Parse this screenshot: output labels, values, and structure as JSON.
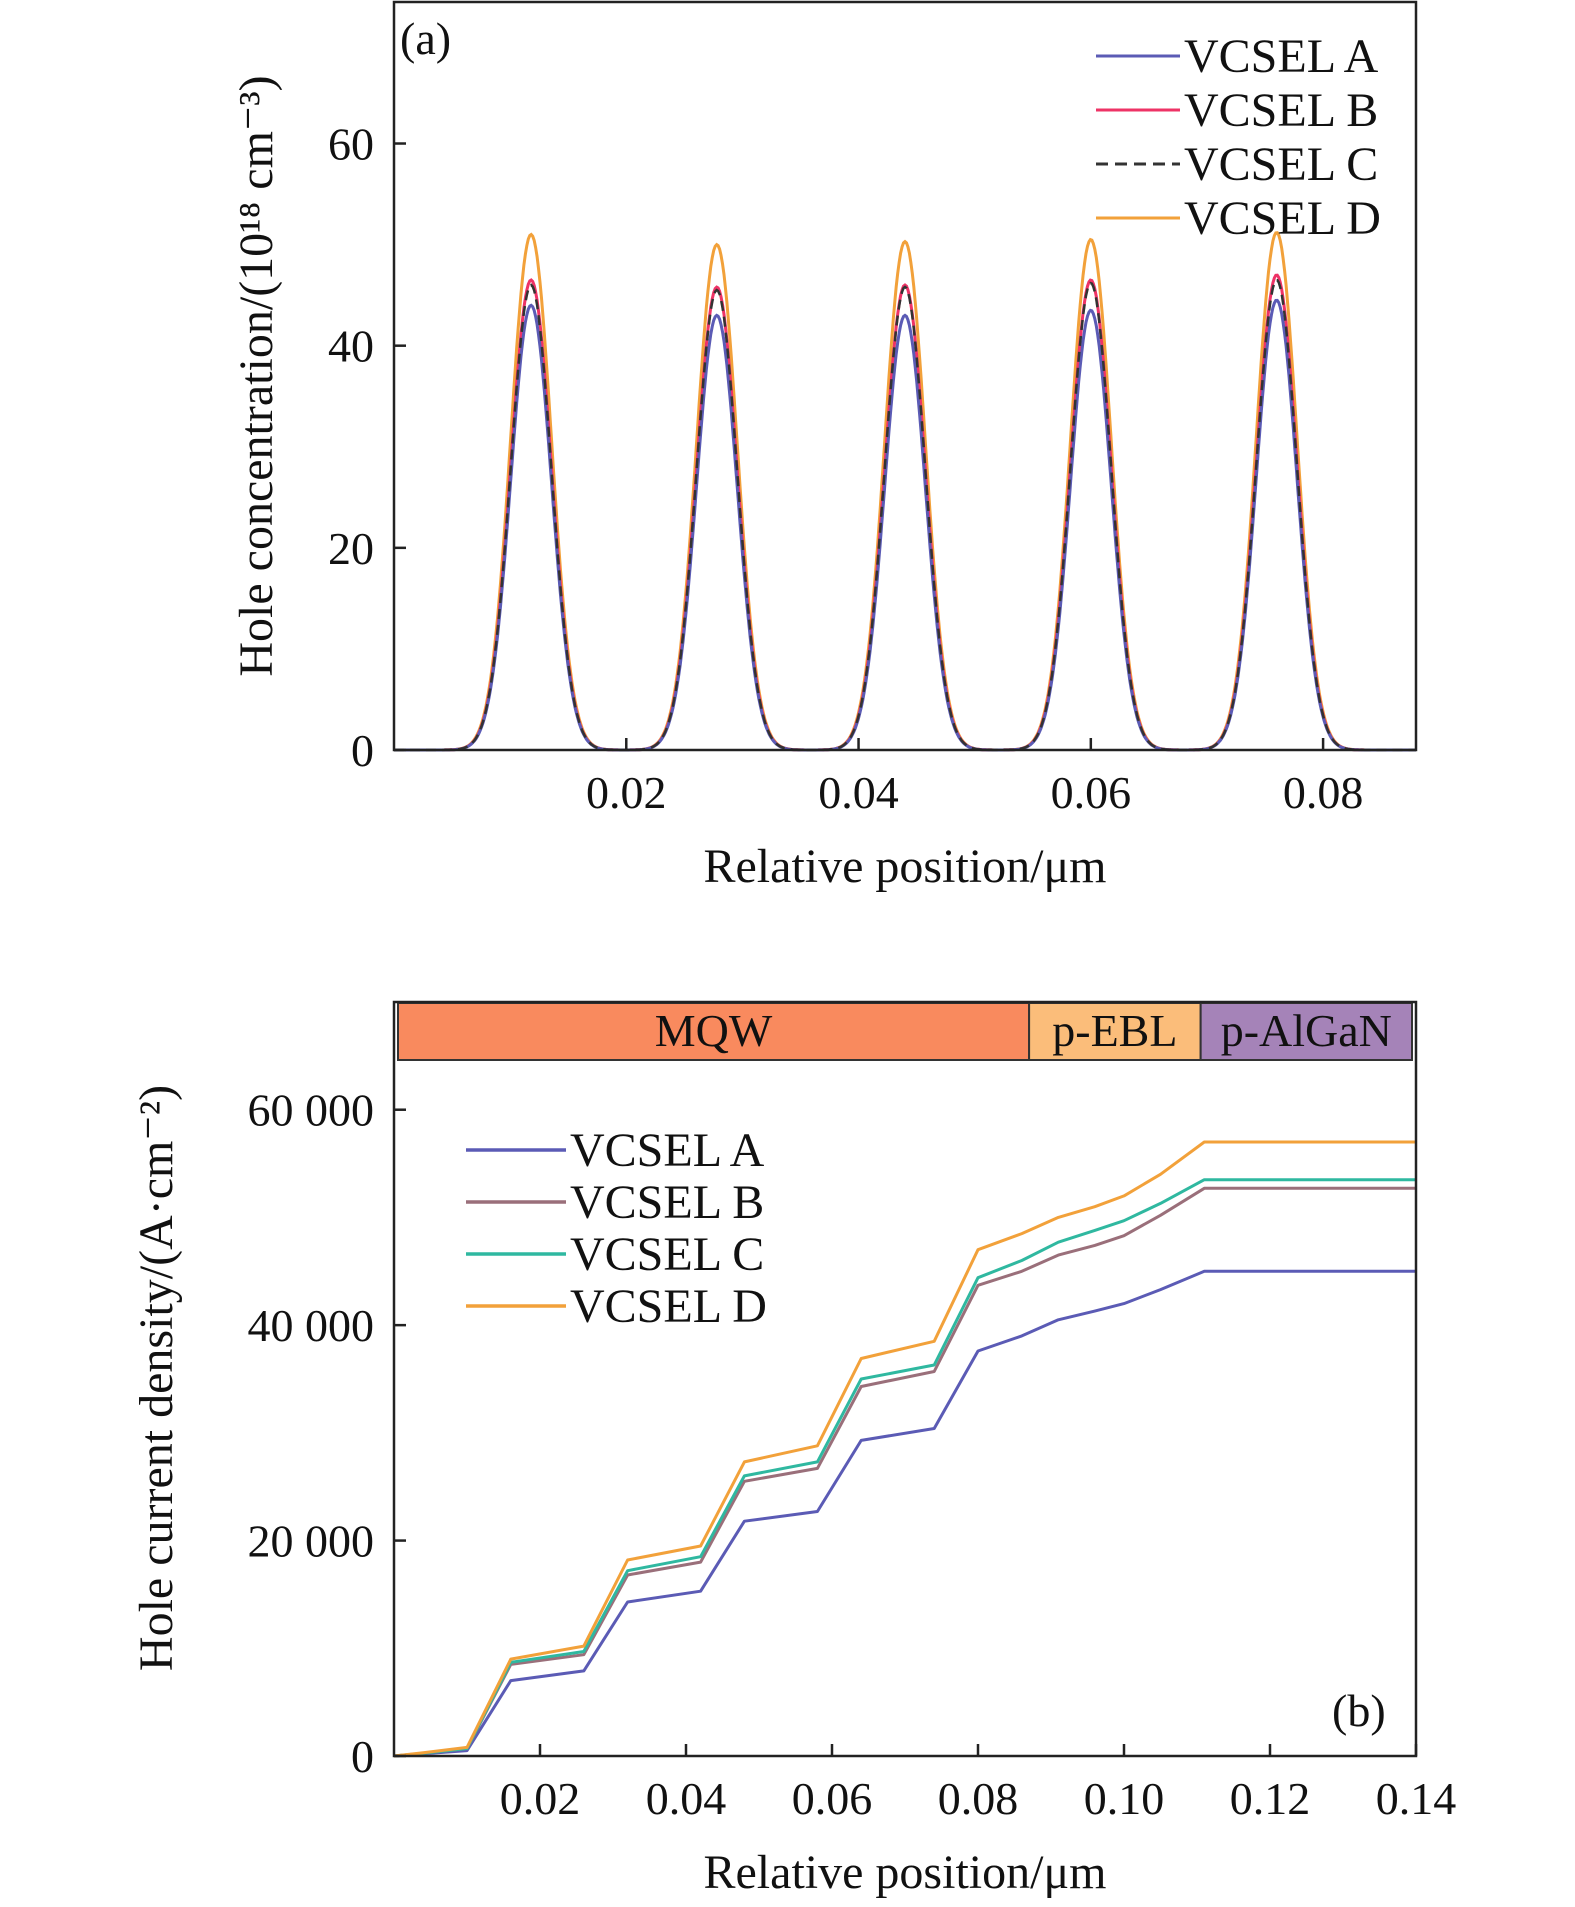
{
  "chart_data": [
    {
      "type": "line",
      "panel_label": "(a)",
      "xlabel": "Relative position/μm",
      "ylabel": "Hole concentration/(10¹⁸ cm⁻³)",
      "xlim": [
        0.0,
        0.088
      ],
      "ylim": [
        0,
        74
      ],
      "x_ticks": [
        0.02,
        0.04,
        0.06,
        0.08
      ],
      "x_tick_labels": [
        "0.02",
        "0.04",
        "0.06",
        "0.08"
      ],
      "y_ticks": [
        0,
        20,
        40,
        60
      ],
      "y_tick_labels": [
        "0",
        "20",
        "40",
        "60"
      ],
      "grid": false,
      "legend_position": "top-right",
      "peak_centers": [
        0.0118,
        0.0278,
        0.044,
        0.06,
        0.076
      ],
      "peak_sigma": 0.00175,
      "series": [
        {
          "name": "VCSEL A",
          "color": "#5b5bb5",
          "dash": "solid",
          "peaks": [
            44,
            43,
            43,
            43.5,
            44.5
          ]
        },
        {
          "name": "VCSEL B",
          "color": "#ee3366",
          "dash": "solid",
          "peaks": [
            46.5,
            45.8,
            46,
            46.5,
            47
          ]
        },
        {
          "name": "VCSEL C",
          "color": "#333333",
          "dash": "dashed",
          "peaks": [
            46,
            45.5,
            45.8,
            46.2,
            46.5
          ]
        },
        {
          "name": "VCSEL D",
          "color": "#f2a13a",
          "dash": "solid",
          "peaks": [
            51,
            50,
            50.3,
            50.5,
            51.2
          ]
        }
      ]
    },
    {
      "type": "line",
      "panel_label": "(b)",
      "xlabel": "Relative position/μm",
      "ylabel": "Hole current density/(A·cm⁻²)",
      "xlim": [
        0.0,
        0.14
      ],
      "ylim": [
        0,
        70000
      ],
      "x_ticks": [
        0.02,
        0.04,
        0.06,
        0.08,
        0.1,
        0.12,
        0.14
      ],
      "x_tick_labels": [
        "0.02",
        "0.04",
        "0.06",
        "0.08",
        "0.10",
        "0.12",
        "0.14"
      ],
      "y_ticks": [
        0,
        20000,
        40000,
        60000
      ],
      "y_tick_labels": [
        "0",
        "20 000",
        "40 000",
        "60 000"
      ],
      "grid": false,
      "legend_position": "top-left",
      "regions": [
        {
          "label": "MQW",
          "start": 0.0,
          "end": 0.087,
          "color": "#f98a5e"
        },
        {
          "label": "p-EBL",
          "start": 0.087,
          "end": 0.1105,
          "color": "#fbbd7a"
        },
        {
          "label": "p-AlGaN",
          "start": 0.1105,
          "end": 0.14,
          "color": "#a583b8"
        }
      ],
      "x": [
        0.0,
        0.004,
        0.01,
        0.016,
        0.026,
        0.032,
        0.042,
        0.048,
        0.058,
        0.064,
        0.074,
        0.08,
        0.086,
        0.091,
        0.096,
        0.1,
        0.105,
        0.111,
        0.14
      ],
      "series": [
        {
          "name": "VCSEL A",
          "color": "#5b5bb5",
          "values": [
            0,
            200,
            500,
            7000,
            7900,
            14300,
            15300,
            21800,
            22700,
            29300,
            30400,
            37600,
            39000,
            40500,
            41300,
            42000,
            43300,
            45000,
            45000
          ]
        },
        {
          "name": "VCSEL B",
          "color": "#9a6f7a",
          "values": [
            0,
            250,
            700,
            8500,
            9400,
            16800,
            18000,
            25500,
            26700,
            34300,
            35700,
            43700,
            45000,
            46500,
            47400,
            48300,
            50200,
            52700,
            52700
          ]
        },
        {
          "name": "VCSEL C",
          "color": "#2fb8a0",
          "values": [
            0,
            250,
            700,
            8700,
            9700,
            17200,
            18500,
            26000,
            27300,
            35000,
            36300,
            44400,
            46000,
            47700,
            48800,
            49700,
            51300,
            53500,
            53500
          ]
        },
        {
          "name": "VCSEL D",
          "color": "#f2a13a",
          "values": [
            0,
            300,
            800,
            9000,
            10200,
            18200,
            19500,
            27300,
            28800,
            36900,
            38500,
            47000,
            48500,
            50000,
            51000,
            52000,
            54000,
            57000,
            57000
          ]
        }
      ]
    }
  ]
}
